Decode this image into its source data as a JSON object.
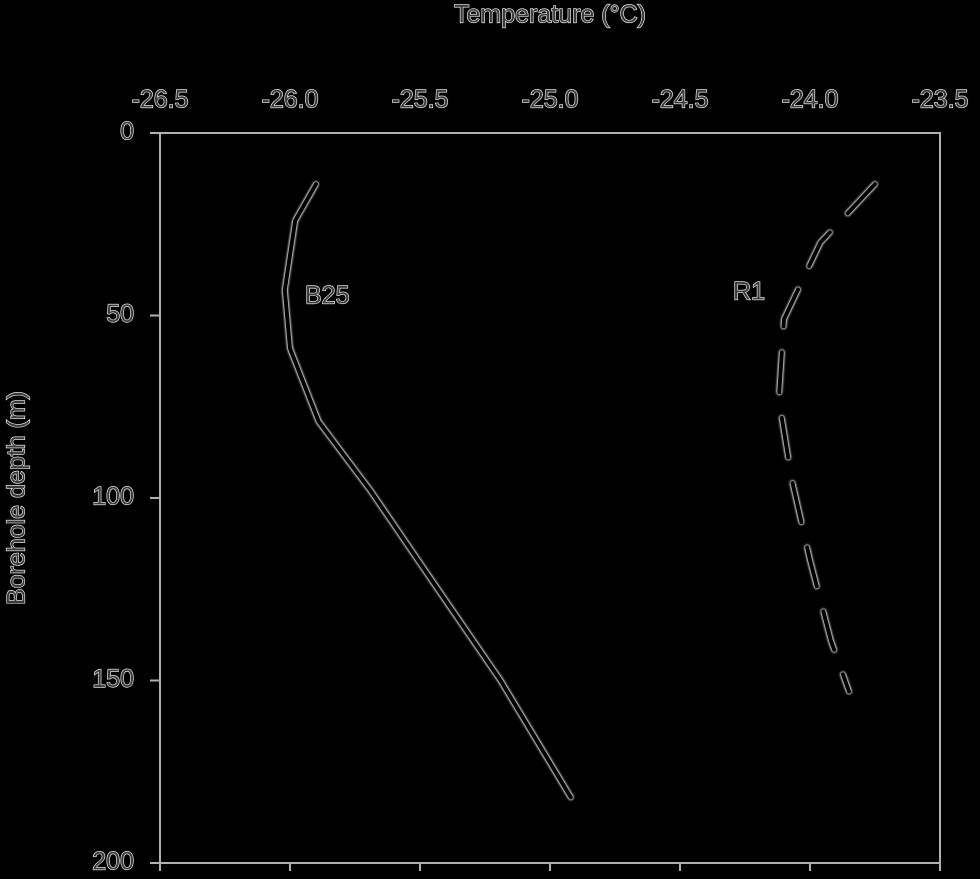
{
  "chart_data": {
    "type": "line",
    "x_label": "Temperature (°C)",
    "y_label": "Borehole depth (m)",
    "xlim": [
      -26.5,
      -23.5
    ],
    "xticks": [
      -26.5,
      {
        "value": -26,
        "label": "-26.0"
      },
      -25.5,
      {
        "value": -25,
        "label": "-25.0"
      },
      -24.5,
      {
        "value": -24,
        "label": "-24.0"
      },
      -23.5
    ],
    "ylim": [
      0,
      200
    ],
    "yticks": [
      0,
      50,
      100,
      150,
      200
    ],
    "y_inverted": true,
    "x_axis_position": "top",
    "series": [
      {
        "name": "B25",
        "color": "#000000",
        "dashed": false,
        "x": [
          -25.9,
          -25.98,
          -26.02,
          -26.0,
          -25.89,
          -25.69,
          -25.46,
          -25.19,
          -24.92
        ],
        "y": [
          14,
          24,
          43,
          59,
          79,
          98,
          122,
          150,
          182
        ]
      },
      {
        "name": "R1",
        "color": "#000000",
        "dashed": true,
        "x": [
          -23.75,
          -23.96,
          -24.1,
          -24.12,
          -24.07,
          -24.0,
          -23.92,
          -23.85
        ],
        "y": [
          14,
          30,
          51,
          73,
          95,
          117,
          139,
          153
        ]
      }
    ]
  }
}
